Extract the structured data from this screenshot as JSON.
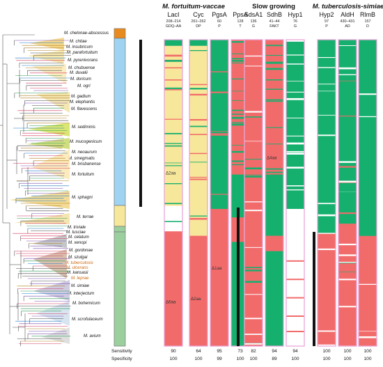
{
  "colors": {
    "green": "#16b06e",
    "salmon": "#f26b6b",
    "yellow": "#f7e79a",
    "lightblue": "#9fd3f2",
    "palegreen": "#9ccf9e",
    "orange": "#e98a1e",
    "black": "#111111",
    "border": "#e9a6d9"
  },
  "groups": [
    {
      "key": "fortuitum",
      "label": "M. fortuitum-vaccae",
      "italic": true
    },
    {
      "key": "slow",
      "label": "Slow growing",
      "italic": false
    },
    {
      "key": "tuberculosis",
      "label": "M. tuberculosis-simiae",
      "italic": true
    }
  ],
  "columns": [
    {
      "id": "laci",
      "name": "LacI",
      "pos": "208–214",
      "aa": "GDQ–AA",
      "sensitivity": "90",
      "specificity": "100",
      "annotation": "Δ2aa",
      "annotation2": "Δ6aa"
    },
    {
      "id": "cyc",
      "name": "Cyc",
      "pos": "261–262",
      "aa": "DP",
      "sensitivity": "64",
      "specificity": "100",
      "annotation": "Δ2aa"
    },
    {
      "id": "pgsa",
      "name": "PgsA",
      "pos": "60",
      "aa": "P",
      "sensitivity": "95",
      "specificity": "99",
      "annotation": "Δ1aa"
    },
    {
      "id": "ppsa",
      "name": "PpsA",
      "pos": "128",
      "aa": "T",
      "sensitivity": "73",
      "specificity": "100"
    },
    {
      "id": "sdsa1",
      "name": "SdsA1",
      "pos": "136",
      "aa": "G",
      "sensitivity": "82",
      "specificity": "100"
    },
    {
      "id": "sdhb",
      "name": "SdhB",
      "pos": "41–44",
      "aa": "FAKT",
      "sensitivity": "94",
      "specificity": "89",
      "annotation": "Δ4aa"
    },
    {
      "id": "hyp1",
      "name": "Hyp1",
      "pos": "76",
      "aa": "G",
      "sensitivity": "94",
      "specificity": "100"
    },
    {
      "id": "hyp2",
      "name": "Hyp2",
      "pos": "97",
      "aa": "P",
      "sensitivity": "100",
      "specificity": "100"
    },
    {
      "id": "aldh",
      "name": "AldH",
      "pos": "430–431",
      "aa": "AD",
      "sensitivity": "100",
      "specificity": "100"
    },
    {
      "id": "rlmb",
      "name": "RlmB",
      "pos": "157",
      "aa": "D",
      "sensitivity": "100",
      "specificity": "100"
    }
  ],
  "metrics": {
    "sensitivity": "Sensitivity",
    "specificity": "Specificity"
  },
  "species": [
    {
      "name": "M. chelonae-abscessus"
    },
    {
      "name": "M. chitae"
    },
    {
      "name": "M. insubricum"
    },
    {
      "name": "M. parafortuitum"
    },
    {
      "name": "M. pyrenivorans"
    },
    {
      "name": "M. chubuense"
    },
    {
      "name": "M. duvalii"
    },
    {
      "name": "M. doricum"
    },
    {
      "name": "M. ogri"
    },
    {
      "name": "M. gadium"
    },
    {
      "name": "M. elephantis"
    },
    {
      "name": "M. flavescens"
    },
    {
      "name": "M. sediminis"
    },
    {
      "name": "M. mucogenicum"
    },
    {
      "name": "M. neoaurum"
    },
    {
      "name": "M. smegmatis"
    },
    {
      "name": "M. brisbanense"
    },
    {
      "name": "M. fortuitum"
    },
    {
      "name": "M. sphagni"
    },
    {
      "name": "M. terrae"
    },
    {
      "name": "M. triviale"
    },
    {
      "name": "M. tusciae"
    },
    {
      "name": "M. celatum"
    },
    {
      "name": "M. xenopi"
    },
    {
      "name": "M. gordonae"
    },
    {
      "name": "M. szulgai"
    },
    {
      "name": "M. tuberculosis"
    },
    {
      "name": "M. ulcerans"
    },
    {
      "name": "M. kansasii"
    },
    {
      "name": "M. leprae"
    },
    {
      "name": "M. simiae"
    },
    {
      "name": "M. interjectum"
    },
    {
      "name": "M. bohemicum"
    },
    {
      "name": "M. scrofulaceum"
    },
    {
      "name": "M. avium"
    }
  ]
}
